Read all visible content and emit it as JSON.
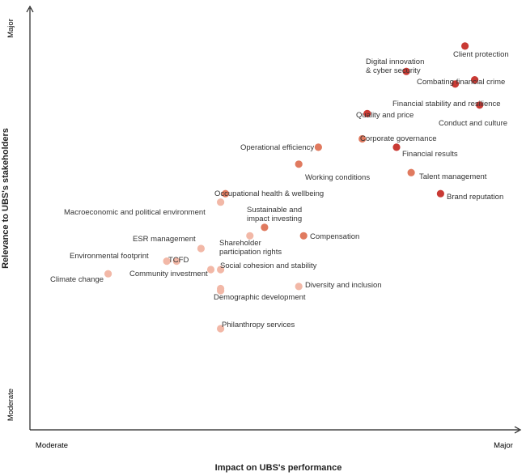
{
  "chart_data": {
    "type": "scatter",
    "title": "",
    "xlabel": "Impact on UBS's performance",
    "ylabel": "Relevance to UBS's stakeholders",
    "x_scale": {
      "low_label": "Moderate",
      "high_label": "Major"
    },
    "y_scale": {
      "low_label": "Moderate",
      "high_label": "Major"
    },
    "xlim": [
      0,
      100
    ],
    "ylim": [
      0,
      100
    ],
    "grid": false,
    "colors": {
      "light": "#f2b8a7",
      "mid": "#e07a5f",
      "dark": "#c93a34",
      "axis_end": "#e26a5a"
    },
    "points": [
      {
        "label": "Client protection",
        "x": 89,
        "y": 91
      },
      {
        "label": "Digital innovation & cyber security",
        "x": 77,
        "y": 85
      },
      {
        "label": "Combating financial crime",
        "x": 91,
        "y": 83
      },
      {
        "label": "Financial stability and resilience",
        "x": 87,
        "y": 82
      },
      {
        "label": "Quality and price",
        "x": 69,
        "y": 75
      },
      {
        "label": "Conduct and culture",
        "x": 92,
        "y": 77
      },
      {
        "label": "Corporate governance",
        "x": 68,
        "y": 69
      },
      {
        "label": "Financial results",
        "x": 75,
        "y": 67
      },
      {
        "label": "Operational efficiency",
        "x": 59,
        "y": 67
      },
      {
        "label": "Working conditions",
        "x": 55,
        "y": 63
      },
      {
        "label": "Talent management",
        "x": 78,
        "y": 61
      },
      {
        "label": "Occupational health & wellbeing",
        "x": 40,
        "y": 56
      },
      {
        "label": "Brand reputation",
        "x": 84,
        "y": 56
      },
      {
        "label": "Macroeconomic and political environment",
        "x": 39,
        "y": 54
      },
      {
        "label": "Sustainable and impact investing",
        "x": 48,
        "y": 48
      },
      {
        "label": "Shareholder participation rights",
        "x": 45,
        "y": 46
      },
      {
        "label": "Compensation",
        "x": 56,
        "y": 46
      },
      {
        "label": "ESR management",
        "x": 35,
        "y": 43
      },
      {
        "label": "Environmental footprint",
        "x": 28,
        "y": 40
      },
      {
        "label": "TCFD",
        "x": 30,
        "y": 40
      },
      {
        "label": "Social cohesion and stability",
        "x": 39,
        "y": 38
      },
      {
        "label": "Social cohesion and stability (2)",
        "x": 37,
        "y": 38
      },
      {
        "label": "Climate change",
        "x": 16,
        "y": 37
      },
      {
        "label": "Community investment",
        "x": 39,
        "y": 33
      },
      {
        "label": "Diversity and inclusion",
        "x": 55,
        "y": 34
      },
      {
        "label": "Demographic development",
        "x": 39,
        "y": 33.5
      },
      {
        "label": "Philanthropy services",
        "x": 39,
        "y": 24
      }
    ],
    "labels": [
      {
        "text": "Client protection"
      },
      {
        "text": "Digital innovation"
      },
      {
        "text": "& cyber security"
      },
      {
        "text": "Combating financial crime"
      },
      {
        "text": "Financial stability and resilience"
      },
      {
        "text": "Quality and price"
      },
      {
        "text": "Conduct and culture"
      },
      {
        "text": "Corporate governance"
      },
      {
        "text": "Financial results"
      },
      {
        "text": "Operational efficiency"
      },
      {
        "text": "Working conditions"
      },
      {
        "text": "Talent management"
      },
      {
        "text": "Occupational health & wellbeing"
      },
      {
        "text": "Brand reputation"
      },
      {
        "text": "Macroeconomic and political environment"
      },
      {
        "text": "Sustainable and"
      },
      {
        "text": "impact investing"
      },
      {
        "text": "Compensation"
      },
      {
        "text": "ESR management"
      },
      {
        "text": "Shareholder"
      },
      {
        "text": "participation rights"
      },
      {
        "text": "Environmental footprint"
      },
      {
        "text": "TCFD"
      },
      {
        "text": "Social cohesion and stability"
      },
      {
        "text": "Community investment"
      },
      {
        "text": "Climate change"
      },
      {
        "text": "Diversity and inclusion"
      },
      {
        "text": "Demographic development"
      },
      {
        "text": "Philanthropy services"
      }
    ]
  }
}
